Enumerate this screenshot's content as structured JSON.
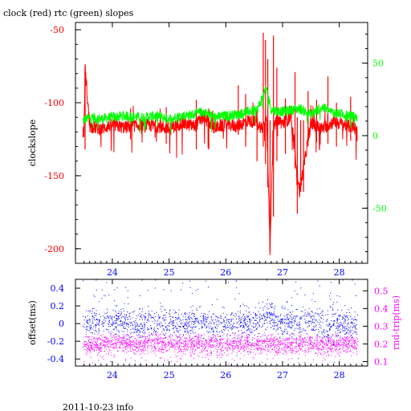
{
  "title": "clock (red) rtc (green) slopes",
  "footer": "2011-10-23 info",
  "colors": {
    "red": "#ff0000",
    "green": "#00ff00",
    "blue": "#0000ff",
    "magenta": "#ff00ff",
    "axis": "#000000"
  },
  "chart_data": [
    {
      "type": "line",
      "title": "clock (red) rtc (green) slopes",
      "ylabel": "clockslope",
      "xlim": [
        23.35,
        28.5
      ],
      "ylim": [
        -210,
        -45
      ],
      "x_ticks": [
        "24",
        "25",
        "26",
        "27",
        "28"
      ],
      "y_ticks": [
        "-50",
        "-100",
        "-150",
        "-200"
      ],
      "y2_ticks": [
        "50",
        "0",
        "-50"
      ],
      "y2lim": [
        -88,
        78
      ],
      "grid": false,
      "series": [
        {
          "name": "clock",
          "color": "#ff0000",
          "x": [
            23.5,
            23.52,
            23.6,
            23.8,
            24.0,
            24.2,
            24.5,
            24.8,
            25.0,
            25.2,
            25.45,
            25.6,
            25.8,
            26.0,
            26.2,
            26.4,
            26.55,
            26.65,
            26.72,
            26.78,
            26.83,
            26.9,
            27.0,
            27.15,
            27.3,
            27.5,
            27.7,
            27.9,
            28.1,
            28.3
          ],
          "y": [
            -120,
            -76,
            -116,
            -118,
            -115,
            -117,
            -115,
            -116,
            -118,
            -114,
            -116,
            -110,
            -117,
            -115,
            -116,
            -112,
            -114,
            -118,
            -108,
            -202,
            -120,
            -112,
            -114,
            -110,
            -161,
            -114,
            -118,
            -113,
            -115,
            -118
          ]
        },
        {
          "name": "rtc",
          "color": "#00ff00",
          "x": [
            23.5,
            23.6,
            23.8,
            24.0,
            24.2,
            24.5,
            24.8,
            25.0,
            25.2,
            25.45,
            25.6,
            25.8,
            26.0,
            26.2,
            26.4,
            26.55,
            26.72,
            26.8,
            27.0,
            27.3,
            27.5,
            27.7,
            27.9,
            28.1,
            28.3
          ],
          "y": [
            -112,
            -110,
            -111,
            -110,
            -109,
            -110,
            -109,
            -111,
            -109,
            -108,
            -106,
            -110,
            -109,
            -108,
            -106,
            -105,
            -90,
            -105,
            -106,
            -104,
            -108,
            -103,
            -107,
            -108,
            -110
          ]
        }
      ]
    },
    {
      "type": "scatter",
      "ylabel": "offset(ms)",
      "y2label": "rnd-trip(ms)",
      "xlim": [
        23.35,
        28.5
      ],
      "ylim": [
        -0.48,
        0.5
      ],
      "y2lim": [
        0.075,
        0.565
      ],
      "x_ticks": [
        "24",
        "25",
        "26",
        "27",
        "28"
      ],
      "y_ticks": [
        "0.4",
        "0.2",
        "0",
        "-0.2",
        "-0.4"
      ],
      "y2_ticks": [
        "0.5",
        "0.4",
        "0.3",
        "0.2",
        "0.1"
      ],
      "grid": false,
      "series": [
        {
          "name": "offset",
          "color": "#0000ff",
          "x": [
            23.5,
            23.8,
            24.1,
            24.4,
            24.7,
            25.0,
            25.3,
            25.55,
            25.8,
            26.1,
            26.4,
            26.6,
            26.75,
            26.9,
            27.1,
            27.3,
            27.5,
            27.8,
            28.0,
            28.3
          ],
          "y": [
            0.02,
            0.0,
            0.03,
            -0.01,
            0.02,
            0.0,
            0.01,
            0.05,
            -0.02,
            0.02,
            0.0,
            0.04,
            0.1,
            0.0,
            0.03,
            -0.01,
            0.02,
            0.0,
            0.01,
            0.02
          ]
        },
        {
          "name": "rnd-trip",
          "color": "#ff00ff",
          "x": [
            23.5,
            23.8,
            24.1,
            24.4,
            24.7,
            25.0,
            25.3,
            25.55,
            25.8,
            26.1,
            26.4,
            26.6,
            26.75,
            26.9,
            27.1,
            27.3,
            27.5,
            27.8,
            28.0,
            28.3
          ],
          "y": [
            0.2,
            0.2,
            0.21,
            0.2,
            0.21,
            0.2,
            0.2,
            0.21,
            0.2,
            0.2,
            0.21,
            0.2,
            0.21,
            0.2,
            0.2,
            0.21,
            0.2,
            0.2,
            0.21,
            0.2
          ]
        }
      ]
    }
  ]
}
